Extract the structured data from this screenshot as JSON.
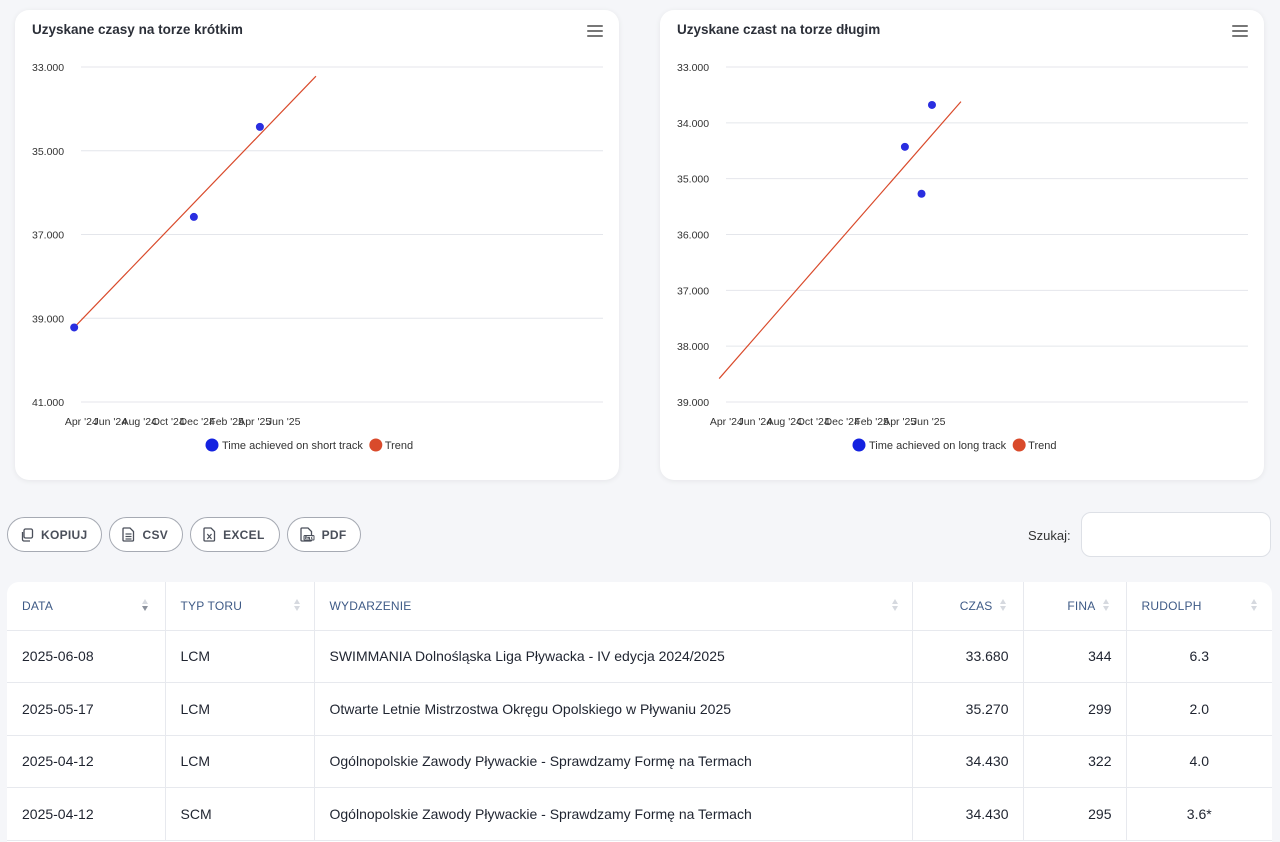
{
  "charts": [
    {
      "title": "Uzyskane czasy na torze krótkim",
      "menu_icon": "hamburger-menu-icon",
      "chart_data": {
        "type": "scatter",
        "title": "Uzyskane czasy na torze krótkim",
        "y_reversed": true,
        "ylim": [
          33.0,
          41.0
        ],
        "y_ticks": [
          "33.000",
          "35.000",
          "37.000",
          "39.000",
          "41.000"
        ],
        "x_ticks": [
          "Apr '24",
          "Jun '24",
          "Aug '24",
          "Oct '24",
          "Dec '24",
          "Feb '25",
          "Apr '25",
          "Jun '25"
        ],
        "grid": true,
        "legend_position": "bottom",
        "series": [
          {
            "name": "Time achieved on short track",
            "color": "#2a2ee0",
            "points": [
              {
                "x": "2024-03-17",
                "y": 39.22
              },
              {
                "x": "2024-11-24",
                "y": 36.58
              },
              {
                "x": "2025-04-12",
                "y": 34.43
              }
            ]
          },
          {
            "name": "Trend",
            "color": "#d94a2b",
            "type": "line",
            "points": [
              {
                "x": "2024-03-17",
                "y": 39.22
              },
              {
                "x": "2025-08-08",
                "y": 33.22
              }
            ]
          }
        ]
      }
    },
    {
      "title": "Uzyskane czast na torze długim",
      "menu_icon": "hamburger-menu-icon",
      "chart_data": {
        "type": "scatter",
        "title": "Uzyskane czast na torze długim",
        "y_reversed": true,
        "ylim": [
          33.0,
          39.0
        ],
        "y_ticks": [
          "33.000",
          "34.000",
          "35.000",
          "36.000",
          "37.000",
          "38.000",
          "39.000"
        ],
        "x_ticks": [
          "Apr '24",
          "Jun '24",
          "Aug '24",
          "Oct '24",
          "Dec '24",
          "Feb '25",
          "Apr '25",
          "Jun '25"
        ],
        "grid": true,
        "legend_position": "bottom",
        "series": [
          {
            "name": "Time achieved on long track",
            "color": "#2a2ee0",
            "points": [
              {
                "x": "2025-04-12",
                "y": 34.43
              },
              {
                "x": "2025-05-17",
                "y": 35.27
              },
              {
                "x": "2025-06-08",
                "y": 33.68
              }
            ]
          },
          {
            "name": "Trend",
            "color": "#d94a2b",
            "type": "line",
            "points": [
              {
                "x": "2024-03-17",
                "y": 38.58
              },
              {
                "x": "2025-08-08",
                "y": 33.62
              }
            ]
          }
        ]
      }
    }
  ],
  "toolbar": {
    "buttons": [
      {
        "label": "KOPIUJ",
        "icon": "copy-icon"
      },
      {
        "label": "CSV",
        "icon": "csv-file-icon"
      },
      {
        "label": "EXCEL",
        "icon": "excel-file-icon"
      },
      {
        "label": "PDF",
        "icon": "pdf-file-icon"
      }
    ]
  },
  "search": {
    "label": "Szukaj:",
    "value": ""
  },
  "table": {
    "columns": [
      "DATA",
      "TYP TORU",
      "WYDARZENIE",
      "CZAS",
      "FINA",
      "RUDOLPH"
    ],
    "rows": [
      [
        "2025-06-08",
        "LCM",
        "SWIMMANIA Dolnośląska Liga Pływacka - IV edycja 2024/2025",
        "33.680",
        "344",
        "6.3"
      ],
      [
        "2025-05-17",
        "LCM",
        "Otwarte Letnie Mistrzostwa Okręgu Opolskiego w Pływaniu 2025",
        "35.270",
        "299",
        "2.0"
      ],
      [
        "2025-04-12",
        "LCM",
        "Ogólnopolskie Zawody Pływackie - Sprawdzamy Formę na Termach",
        "34.430",
        "322",
        "4.0"
      ],
      [
        "2025-04-12",
        "SCM",
        "Ogólnopolskie Zawody Pływackie - Sprawdzamy Formę na Termach",
        "34.430",
        "295",
        "3.6*"
      ]
    ]
  }
}
